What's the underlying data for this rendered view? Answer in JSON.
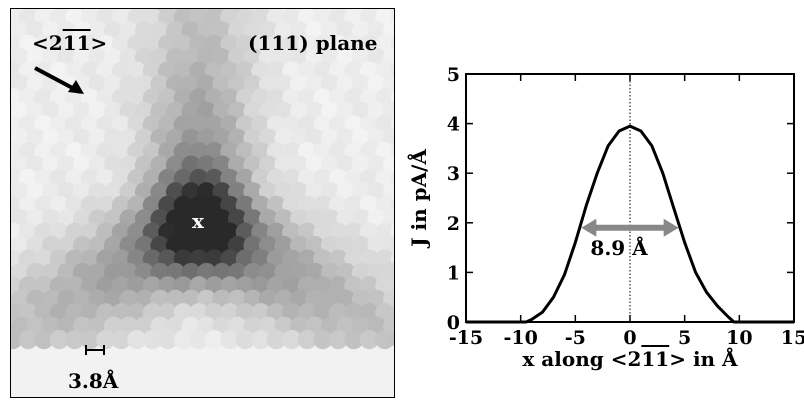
{
  "image_panel": {
    "direction_label": "<2",
    "direction_label_bar": "11",
    "direction_label_close": ">",
    "plane_label": "(111) plane",
    "marker_label": "x",
    "scale_label": "3.8Å"
  },
  "chart_data": {
    "type": "line",
    "title": "",
    "xlabel_pre": "x along <2",
    "xlabel_bar": "11",
    "xlabel_post": "> in Å",
    "ylabel": "J in pA/Å",
    "xlim": [
      -15,
      15
    ],
    "ylim": [
      0,
      5
    ],
    "x_ticks": [
      "-15",
      "-10",
      "-5",
      "0",
      "5",
      "10",
      "15"
    ],
    "y_ticks": [
      "0",
      "1",
      "2",
      "3",
      "4",
      "5"
    ],
    "grid": false,
    "vertical_reference_x": 0,
    "series": [
      {
        "x": [
          -15,
          -10,
          -9.5,
          -9,
          -8,
          -7,
          -6,
          -5,
          -4,
          -3,
          -2,
          -1,
          0,
          1,
          2,
          3,
          4,
          5,
          6,
          7,
          8,
          9,
          9.5,
          10,
          15
        ],
        "y": [
          0,
          0,
          0.0,
          0.05,
          0.2,
          0.5,
          0.95,
          1.6,
          2.35,
          3.0,
          3.55,
          3.85,
          3.95,
          3.85,
          3.55,
          3.0,
          2.3,
          1.6,
          1.0,
          0.6,
          0.32,
          0.1,
          0.0,
          0,
          0
        ],
        "color": "#000000"
      }
    ],
    "annotations": [
      {
        "type": "double-arrow",
        "x_start": -4.45,
        "x_end": 4.45,
        "y": 1.9,
        "color": "#888888",
        "label": "8.9 Å",
        "label_x": -1,
        "label_y": 1.35
      }
    ]
  }
}
